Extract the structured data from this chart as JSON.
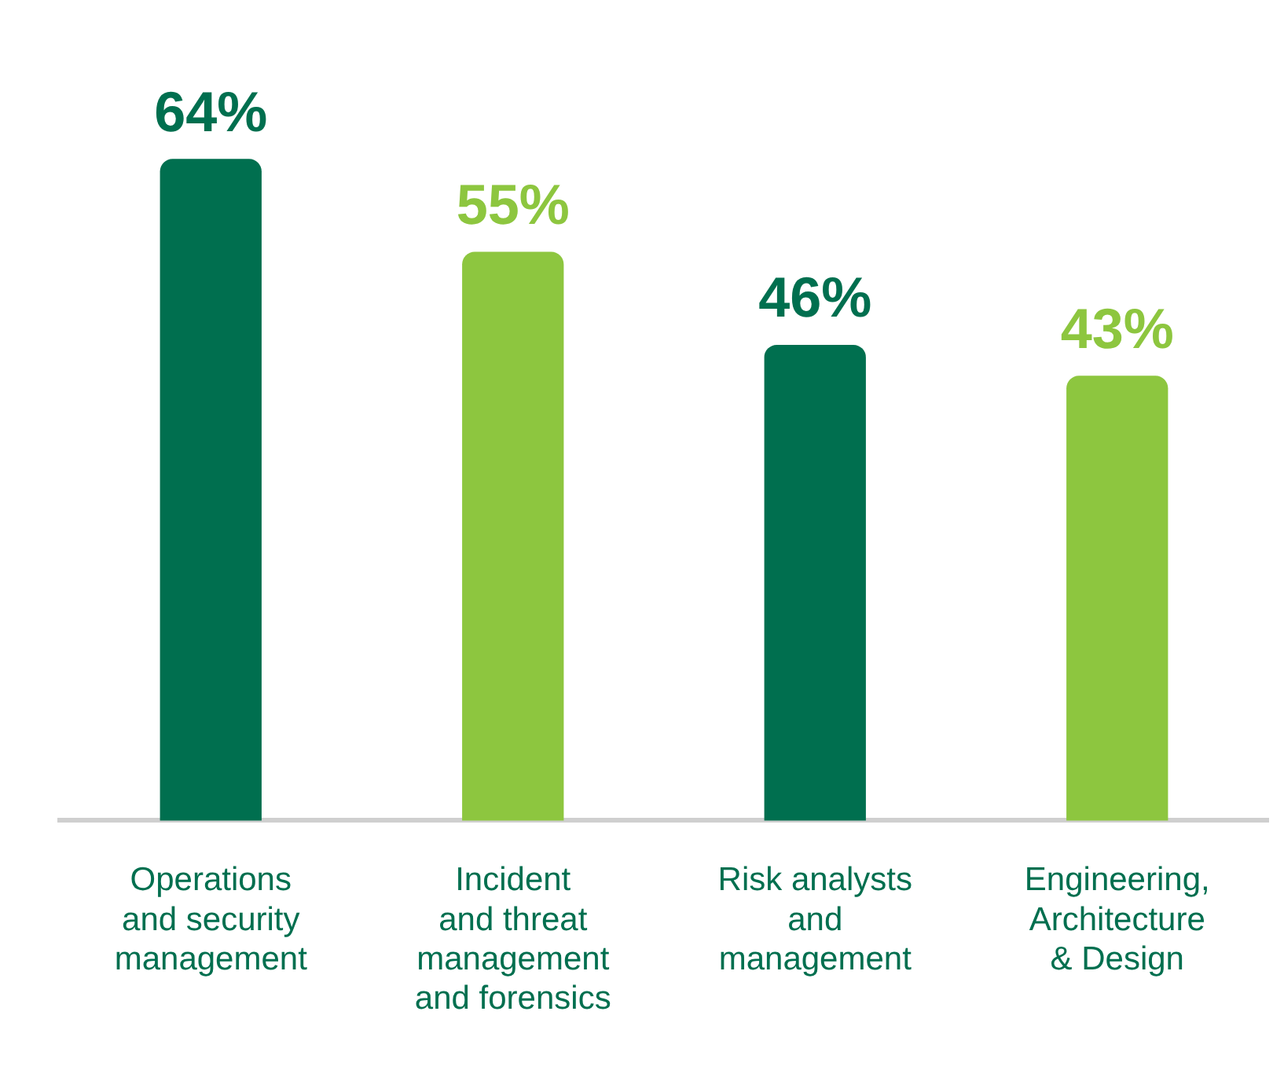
{
  "chart_data": {
    "type": "bar",
    "relative": false,
    "categories": [
      "Operations\nand security\nmanagement",
      "Incident\nand threat\nmanagement\nand forensics",
      "Risk analysts\nand\nmanagement",
      "Engineering,\nArchitecture\n& Design"
    ],
    "values": [
      64,
      55,
      46,
      43
    ],
    "colors": [
      "#006f4f",
      "#8dc63f",
      "#006f4f",
      "#8dc63f"
    ],
    "value_labels": [
      "64%",
      "55%",
      "46%",
      "43%"
    ],
    "grid": false,
    "legend": false
  }
}
